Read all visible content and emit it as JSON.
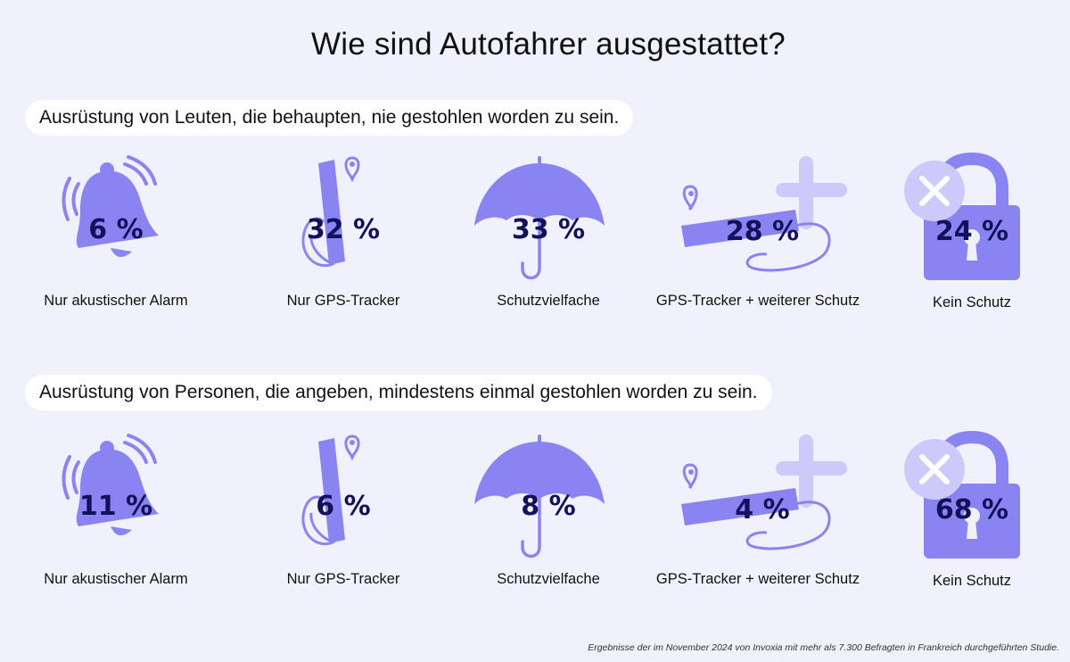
{
  "title": "Wie sind Autofahrer ausgestattet?",
  "colors": {
    "background": "#f1f1fd",
    "icon": "#8a84f2",
    "icon_light": "#cdc9fa",
    "value_text": "#12125a",
    "pill": "#ffffff"
  },
  "sections": [
    {
      "heading": "Ausrüstung von Leuten, die behaupten, nie gestohlen worden zu sein.",
      "items": [
        {
          "icon": "bell-icon",
          "value": "6 %",
          "label": "Nur akustischer Alarm"
        },
        {
          "icon": "gps-tracker-icon",
          "value": "32 %",
          "label": "Nur GPS-Tracker"
        },
        {
          "icon": "umbrella-icon",
          "value": "33 %",
          "label": "Schutzvielfache"
        },
        {
          "icon": "gps-tracker-plus-icon",
          "value": "28 %",
          "label": "GPS-Tracker + weiterer Schutz"
        },
        {
          "icon": "padlock-x-icon",
          "value": "24 %",
          "label": "Kein Schutz"
        }
      ]
    },
    {
      "heading": "Ausrüstung von Personen, die angeben, mindestens einmal gestohlen worden zu sein.",
      "items": [
        {
          "icon": "bell-icon",
          "value": "11 %",
          "label": "Nur akustischer Alarm"
        },
        {
          "icon": "gps-tracker-icon",
          "value": "6 %",
          "label": "Nur GPS-Tracker"
        },
        {
          "icon": "umbrella-icon",
          "value": "8 %",
          "label": "Schutzvielfache"
        },
        {
          "icon": "gps-tracker-plus-icon",
          "value": "4 %",
          "label": "GPS-Tracker + weiterer Schutz"
        },
        {
          "icon": "padlock-x-icon",
          "value": "68 %",
          "label": "Kein Schutz"
        }
      ]
    }
  ],
  "footnote": "Ergebnisse der im November 2024 von Invoxia mit mehr als 7.300 Befragten in Frankreich durchgeführten Studie."
}
